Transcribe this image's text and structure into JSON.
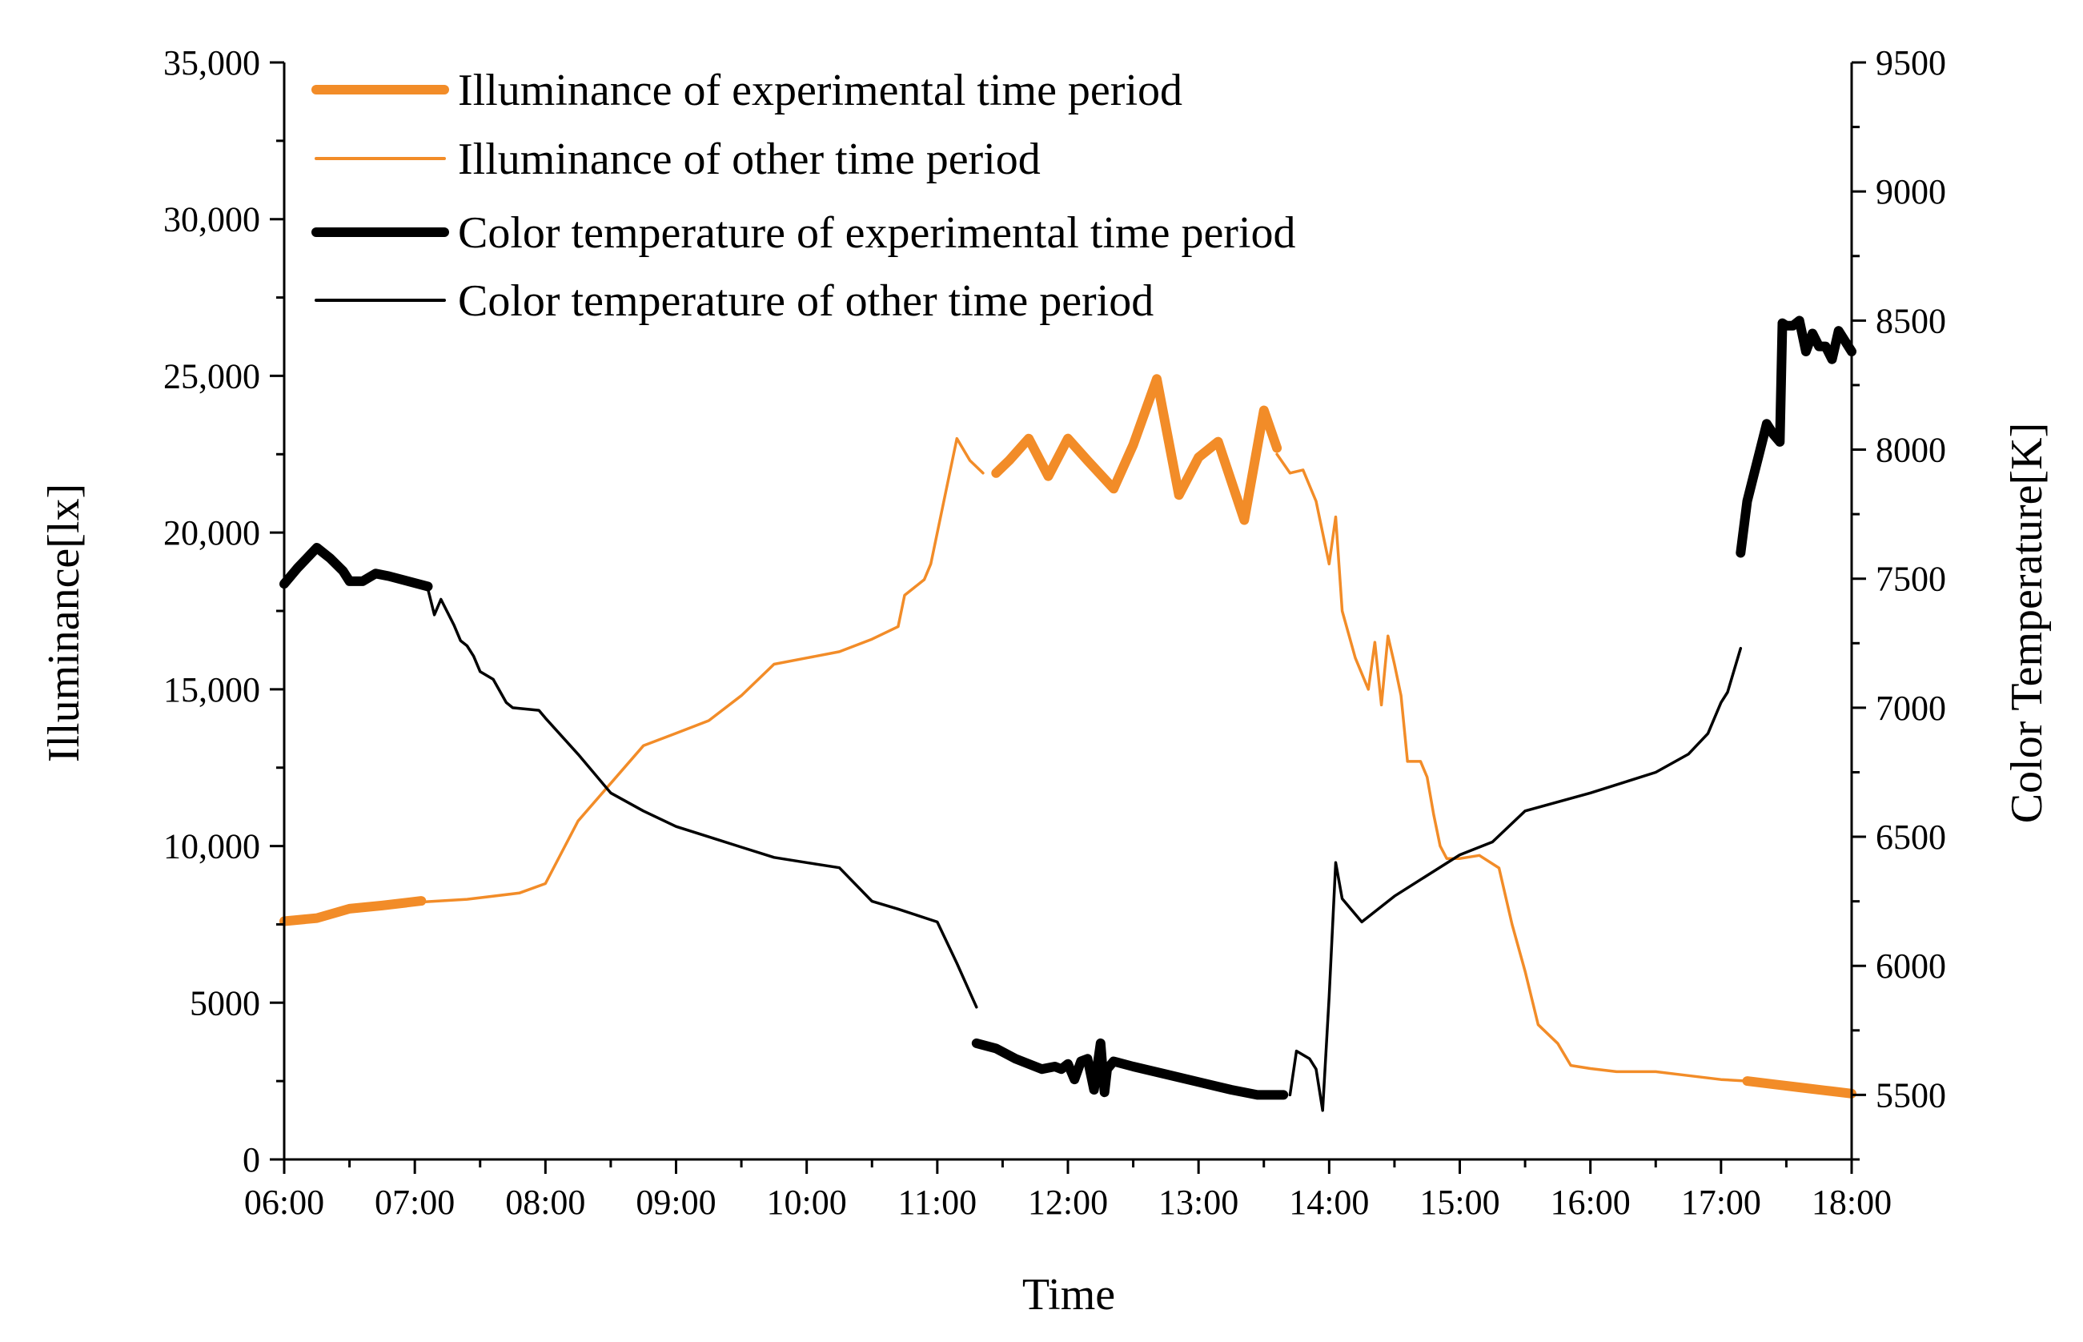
{
  "chart_data": {
    "type": "line",
    "title": "",
    "xlabel": "Time",
    "ylabel_left": "Illuminance[lx]",
    "ylabel_right": "Color Temperature[K]",
    "x_unit": "hours",
    "xlim": [
      6,
      18
    ],
    "ylim_left": [
      0,
      35000
    ],
    "ylim_right": [
      5250,
      9500
    ],
    "x_ticks": [
      {
        "value": 6,
        "label": "06:00"
      },
      {
        "value": 7,
        "label": "07:00"
      },
      {
        "value": 8,
        "label": "08:00"
      },
      {
        "value": 9,
        "label": "09:00"
      },
      {
        "value": 10,
        "label": "10:00"
      },
      {
        "value": 11,
        "label": "11:00"
      },
      {
        "value": 12,
        "label": "12:00"
      },
      {
        "value": 13,
        "label": "13:00"
      },
      {
        "value": 14,
        "label": "14:00"
      },
      {
        "value": 15,
        "label": "15:00"
      },
      {
        "value": 16,
        "label": "16:00"
      },
      {
        "value": 17,
        "label": "17:00"
      },
      {
        "value": 18,
        "label": "18:00"
      }
    ],
    "y_left_ticks": [
      {
        "value": 0,
        "label": "0"
      },
      {
        "value": 5000,
        "label": "5000"
      },
      {
        "value": 10000,
        "label": "10,000"
      },
      {
        "value": 15000,
        "label": "15,000"
      },
      {
        "value": 20000,
        "label": "20,000"
      },
      {
        "value": 25000,
        "label": "25,000"
      },
      {
        "value": 30000,
        "label": "30,000"
      },
      {
        "value": 35000,
        "label": "35,000"
      }
    ],
    "y_right_ticks": [
      {
        "value": 5500,
        "label": "5500"
      },
      {
        "value": 6000,
        "label": "6000"
      },
      {
        "value": 6500,
        "label": "6500"
      },
      {
        "value": 7000,
        "label": "7000"
      },
      {
        "value": 7500,
        "label": "7500"
      },
      {
        "value": 8000,
        "label": "8000"
      },
      {
        "value": 8500,
        "label": "8500"
      },
      {
        "value": 9000,
        "label": "9000"
      },
      {
        "value": 9500,
        "label": "9500"
      }
    ],
    "legend_position": "top-left",
    "series": [
      {
        "name": "Illuminance of other time period",
        "axis": "left",
        "color": "#f28c28",
        "style": "thin",
        "x": [
          6.0,
          6.3,
          6.5,
          7.0,
          7.4,
          7.8,
          8.0,
          8.25,
          8.5,
          8.75,
          9.0,
          9.25,
          9.5,
          9.75,
          10.0,
          10.25,
          10.5,
          10.7,
          10.75,
          10.9,
          10.95,
          11.05,
          11.15,
          11.25,
          11.35
        ],
        "values": [
          7500,
          7700,
          8000,
          8200,
          8300,
          8500,
          8800,
          10800,
          12000,
          13200,
          13600,
          14000,
          14800,
          15800,
          16000,
          16200,
          16600,
          17000,
          18000,
          18500,
          19000,
          21000,
          23000,
          22300,
          21900
        ]
      },
      {
        "name": "Illuminance of other time period",
        "axis": "left",
        "color": "#f28c28",
        "style": "thin",
        "x": [
          13.6,
          13.7,
          13.8,
          13.9,
          14.0,
          14.05,
          14.1,
          14.2,
          14.3,
          14.35,
          14.4,
          14.45,
          14.5,
          14.55,
          14.6,
          14.7,
          14.75,
          14.8,
          14.85,
          14.9,
          15.0,
          15.15,
          15.3,
          15.4,
          15.5,
          15.6,
          15.75,
          15.85,
          16.0,
          16.2,
          16.5,
          16.7,
          17.0,
          17.2
        ],
        "values": [
          22500,
          21900,
          22000,
          21000,
          19000,
          20500,
          17500,
          16000,
          15000,
          16500,
          14500,
          16700,
          15800,
          14800,
          12700,
          12700,
          12200,
          11000,
          10000,
          9600,
          9600,
          9700,
          9300,
          7500,
          6000,
          4300,
          3700,
          3000,
          2900,
          2800,
          2800,
          2700,
          2550,
          2500
        ]
      },
      {
        "name": "Illuminance of experimental time period",
        "axis": "left",
        "color": "#f28c28",
        "style": "thick",
        "x": [
          6.0,
          6.25,
          6.5,
          6.75,
          7.05
        ],
        "values": [
          7600,
          7700,
          8000,
          8100,
          8250
        ]
      },
      {
        "name": "Illuminance of experimental time period",
        "axis": "left",
        "color": "#f28c28",
        "style": "thick",
        "x": [
          11.45,
          11.55,
          11.7,
          11.85,
          12.0,
          12.15,
          12.35,
          12.5,
          12.68,
          12.85,
          13.0,
          13.15,
          13.35,
          13.5,
          13.6
        ],
        "values": [
          21900,
          22300,
          23000,
          21800,
          23000,
          22300,
          21400,
          22800,
          24900,
          21200,
          22400,
          22900,
          20400,
          23900,
          22700
        ]
      },
      {
        "name": "Illuminance of experimental time period",
        "axis": "left",
        "color": "#f28c28",
        "style": "thick",
        "x": [
          17.2,
          17.4,
          17.6,
          17.8,
          18.0
        ],
        "values": [
          2500,
          2400,
          2300,
          2200,
          2100
        ]
      },
      {
        "name": "Color temperature of other time period",
        "axis": "right",
        "color": "#000000",
        "style": "thin",
        "x": [
          7.1,
          7.15,
          7.2,
          7.3,
          7.35,
          7.4,
          7.45,
          7.5,
          7.6,
          7.7,
          7.75,
          7.95,
          8.0,
          8.25,
          8.5,
          8.75,
          9.0,
          9.25,
          9.5,
          9.75,
          10.0,
          10.25,
          10.5,
          10.7,
          11.0,
          11.15,
          11.3
        ],
        "values": [
          7460,
          7360,
          7420,
          7320,
          7260,
          7240,
          7200,
          7140,
          7110,
          7020,
          7000,
          6990,
          6960,
          6820,
          6670,
          6600,
          6540,
          6500,
          6460,
          6420,
          6400,
          6380,
          6250,
          6220,
          6170,
          6010,
          5840
        ]
      },
      {
        "name": "Color temperature of other time period",
        "axis": "right",
        "color": "#000000",
        "style": "thin",
        "x": [
          13.7,
          13.75,
          13.85,
          13.9,
          13.95,
          14.0,
          14.05,
          14.1,
          14.25,
          14.5,
          14.75,
          15.0,
          15.25,
          15.5,
          16.0,
          16.25,
          16.5,
          16.75,
          16.9,
          17.0,
          17.05,
          17.15
        ],
        "values": [
          5500,
          5670,
          5640,
          5600,
          5440,
          5880,
          6400,
          6260,
          6170,
          6270,
          6350,
          6430,
          6480,
          6600,
          6670,
          6710,
          6750,
          6820,
          6900,
          7020,
          7060,
          7230
        ]
      },
      {
        "name": "Color temperature of experimental time period",
        "axis": "right",
        "color": "#000000",
        "style": "thick",
        "x": [
          6.0,
          6.1,
          6.25,
          6.35,
          6.45,
          6.5,
          6.6,
          6.7,
          6.8,
          7.1
        ],
        "values": [
          7480,
          7540,
          7620,
          7580,
          7530,
          7490,
          7490,
          7520,
          7510,
          7470
        ]
      },
      {
        "name": "Color temperature of experimental time period",
        "axis": "right",
        "color": "#000000",
        "style": "thick",
        "x": [
          11.3,
          11.45,
          11.6,
          11.8,
          11.9,
          11.95,
          12.0,
          12.05,
          12.1,
          12.15,
          12.2,
          12.25,
          12.28,
          12.3,
          12.35,
          12.5,
          12.75,
          13.0,
          13.25,
          13.45,
          13.65
        ],
        "values": [
          5700,
          5680,
          5640,
          5600,
          5610,
          5600,
          5620,
          5560,
          5630,
          5640,
          5520,
          5700,
          5510,
          5600,
          5630,
          5610,
          5580,
          5550,
          5520,
          5500,
          5500
        ]
      },
      {
        "name": "Color temperature of experimental time period",
        "axis": "right",
        "color": "#000000",
        "style": "thick",
        "x": [
          17.15,
          17.2,
          17.25,
          17.3,
          17.35,
          17.4,
          17.45,
          17.47,
          17.5,
          17.55,
          17.6,
          17.65,
          17.7,
          17.75,
          17.8,
          17.85,
          17.9,
          17.95,
          18.0
        ],
        "values": [
          7600,
          7800,
          7900,
          8000,
          8100,
          8060,
          8030,
          8490,
          8480,
          8480,
          8500,
          8380,
          8450,
          8400,
          8400,
          8350,
          8460,
          8420,
          8380
        ]
      }
    ]
  },
  "legend": {
    "items": [
      {
        "label": "Illuminance of experimental time period",
        "color": "#f28c28",
        "style": "thick"
      },
      {
        "label": "Illuminance of other time period",
        "color": "#f28c28",
        "style": "thin"
      },
      {
        "label": "Color temperature of experimental time period",
        "color": "#000000",
        "style": "thick"
      },
      {
        "label": "Color temperature of other time period",
        "color": "#000000",
        "style": "thin"
      }
    ]
  }
}
